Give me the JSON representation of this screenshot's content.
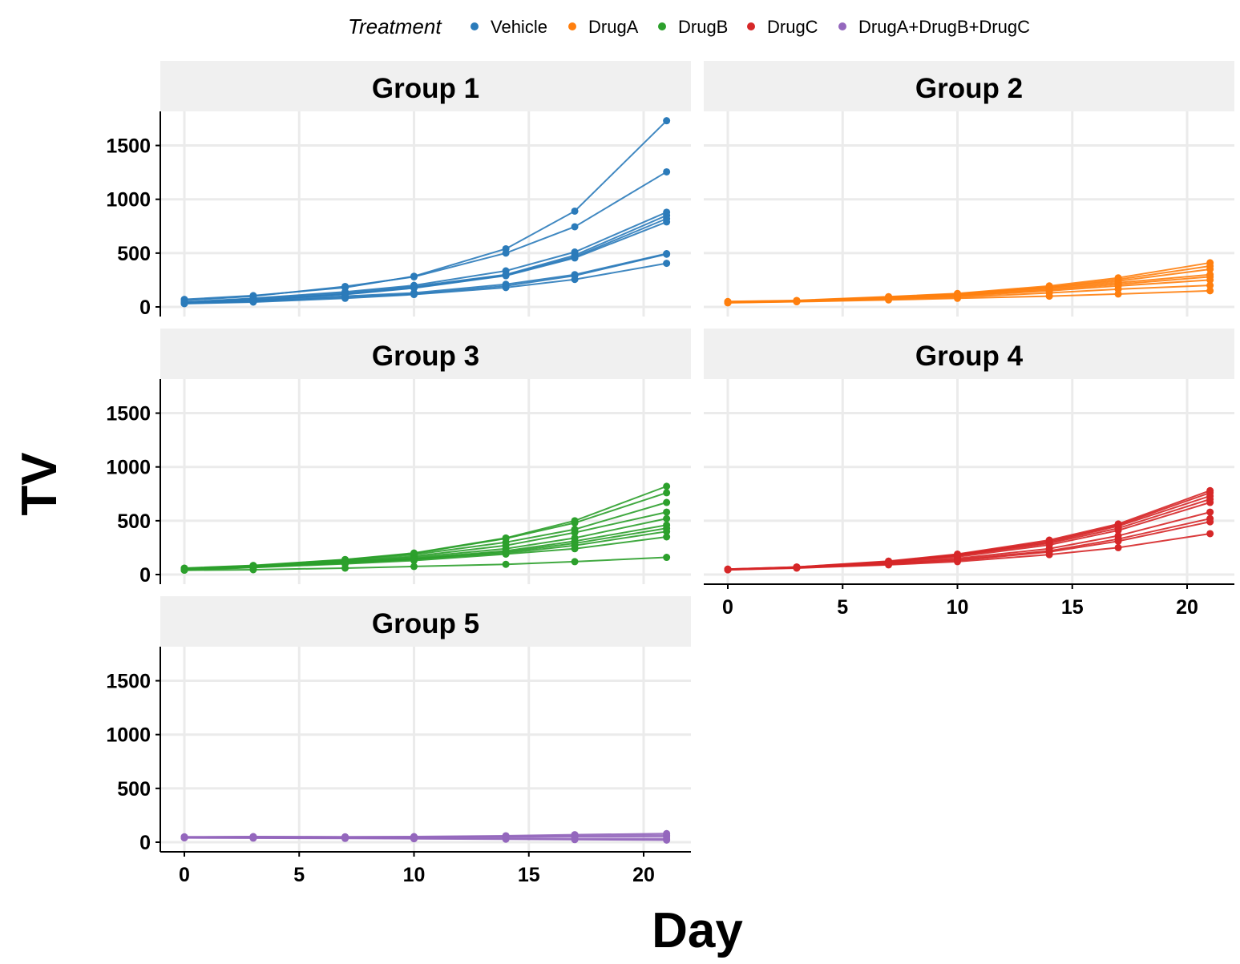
{
  "chart_data": {
    "type": "line",
    "xlabel": "Day",
    "ylabel": "TV",
    "xlim": [
      -1,
      22
    ],
    "ylim": [
      -60,
      1800
    ],
    "xticks": [
      0,
      5,
      10,
      15,
      20
    ],
    "yticks": [
      0,
      500,
      1000,
      1500
    ],
    "grid": true,
    "legend": {
      "title": "Treatment",
      "position": "top",
      "entries": [
        {
          "name": "Vehicle",
          "color": "#2b7bba"
        },
        {
          "name": "DrugA",
          "color": "#ff7f0e"
        },
        {
          "name": "DrugB",
          "color": "#2ca02c"
        },
        {
          "name": "DrugC",
          "color": "#d62728"
        },
        {
          "name": "DrugA+DrugB+DrugC",
          "color": "#9467bd"
        }
      ]
    },
    "days": [
      0,
      3,
      7,
      10,
      14,
      17,
      21
    ],
    "panels": [
      {
        "title": "Group 1",
        "treatment": "Vehicle",
        "color": "#2b7bba",
        "series": [
          [
            70,
            105,
            180,
            285,
            540,
            890,
            1730
          ],
          [
            60,
            100,
            190,
            280,
            500,
            745,
            1255
          ],
          [
            45,
            80,
            140,
            200,
            335,
            510,
            880
          ],
          [
            40,
            75,
            130,
            190,
            300,
            480,
            850
          ],
          [
            35,
            65,
            120,
            180,
            295,
            465,
            820
          ],
          [
            38,
            60,
            115,
            175,
            290,
            455,
            790
          ],
          [
            40,
            55,
            100,
            130,
            210,
            300,
            495
          ],
          [
            35,
            50,
            90,
            120,
            195,
            290,
            490
          ],
          [
            30,
            45,
            80,
            115,
            180,
            255,
            405
          ]
        ]
      },
      {
        "title": "Group 2",
        "treatment": "DrugA",
        "color": "#ff7f0e",
        "series": [
          [
            50,
            60,
            95,
            125,
            195,
            270,
            410
          ],
          [
            48,
            58,
            92,
            120,
            185,
            255,
            380
          ],
          [
            45,
            57,
            90,
            118,
            180,
            240,
            350
          ],
          [
            45,
            55,
            85,
            110,
            170,
            225,
            300
          ],
          [
            42,
            55,
            80,
            105,
            160,
            210,
            280
          ],
          [
            40,
            52,
            78,
            100,
            150,
            195,
            250
          ],
          [
            40,
            50,
            70,
            90,
            130,
            165,
            200
          ],
          [
            38,
            48,
            65,
            80,
            100,
            120,
            150
          ]
        ]
      },
      {
        "title": "Group 3",
        "treatment": "DrugB",
        "color": "#2ca02c",
        "series": [
          [
            60,
            85,
            140,
            200,
            340,
            500,
            820
          ],
          [
            58,
            82,
            138,
            195,
            335,
            480,
            760
          ],
          [
            55,
            80,
            130,
            185,
            300,
            420,
            670
          ],
          [
            55,
            78,
            125,
            170,
            270,
            390,
            580
          ],
          [
            50,
            75,
            120,
            160,
            240,
            340,
            520
          ],
          [
            50,
            72,
            115,
            150,
            220,
            310,
            460
          ],
          [
            48,
            70,
            110,
            145,
            210,
            290,
            430
          ],
          [
            45,
            68,
            105,
            140,
            200,
            270,
            400
          ],
          [
            42,
            65,
            100,
            130,
            190,
            240,
            350
          ],
          [
            40,
            45,
            60,
            75,
            95,
            120,
            160
          ]
        ]
      },
      {
        "title": "Group 4",
        "treatment": "DrugC",
        "color": "#d62728",
        "series": [
          [
            50,
            70,
            125,
            190,
            320,
            470,
            780
          ],
          [
            50,
            70,
            120,
            185,
            310,
            460,
            760
          ],
          [
            48,
            68,
            118,
            180,
            300,
            450,
            730
          ],
          [
            48,
            67,
            115,
            175,
            290,
            430,
            700
          ],
          [
            47,
            66,
            110,
            165,
            275,
            410,
            670
          ],
          [
            46,
            65,
            105,
            150,
            240,
            360,
            580
          ],
          [
            45,
            64,
            100,
            140,
            220,
            330,
            520
          ],
          [
            45,
            62,
            95,
            130,
            210,
            310,
            490
          ],
          [
            44,
            60,
            90,
            120,
            185,
            250,
            380
          ]
        ]
      },
      {
        "title": "Group 5",
        "treatment": "DrugA+DrugB+DrugC",
        "color": "#9467bd",
        "series": [
          [
            50,
            52,
            50,
            52,
            60,
            70,
            80
          ],
          [
            48,
            50,
            48,
            48,
            55,
            60,
            65
          ],
          [
            45,
            46,
            45,
            45,
            48,
            50,
            50
          ],
          [
            42,
            40,
            38,
            36,
            35,
            32,
            30
          ],
          [
            40,
            38,
            35,
            32,
            28,
            24,
            20
          ]
        ]
      }
    ]
  }
}
